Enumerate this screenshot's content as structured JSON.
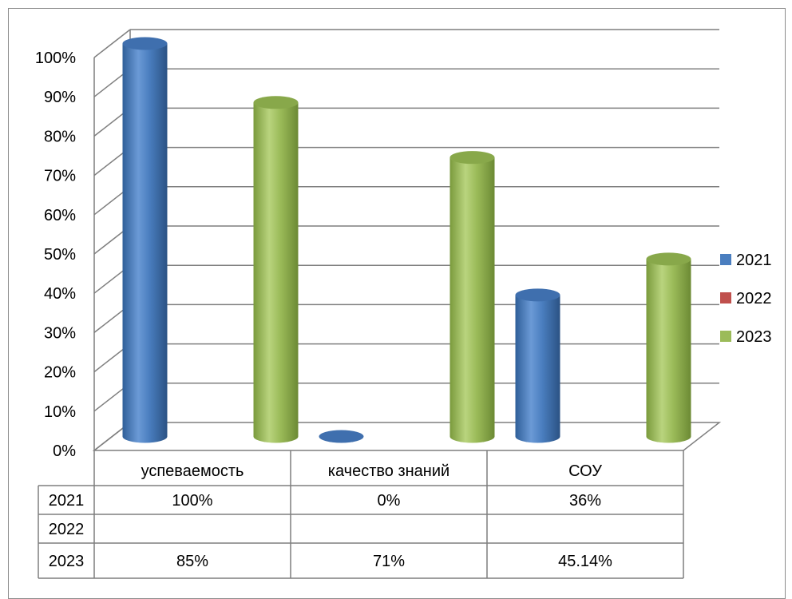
{
  "chart_data": {
    "type": "bar",
    "categories": [
      "успеваемость",
      "качество знаний",
      "СОУ"
    ],
    "series": [
      {
        "name": "2021",
        "color": "#4a7ebf",
        "values": [
          100,
          0,
          36
        ],
        "labels": [
          "100%",
          "0%",
          "36%"
        ]
      },
      {
        "name": "2022",
        "color": "#c0504d",
        "values": [
          null,
          null,
          null
        ],
        "labels": [
          "",
          "",
          ""
        ]
      },
      {
        "name": "2023",
        "color": "#9bbb59",
        "values": [
          85,
          71,
          45.14
        ],
        "labels": [
          "85%",
          "71%",
          "45.14%"
        ]
      }
    ],
    "ylim": [
      0,
      100
    ],
    "y_ticks": [
      "0%",
      "10%",
      "20%",
      "30%",
      "40%",
      "50%",
      "60%",
      "70%",
      "80%",
      "90%",
      "100%"
    ],
    "grid": true,
    "legend": "right",
    "style": "3d-cylinder",
    "data_table": true
  }
}
